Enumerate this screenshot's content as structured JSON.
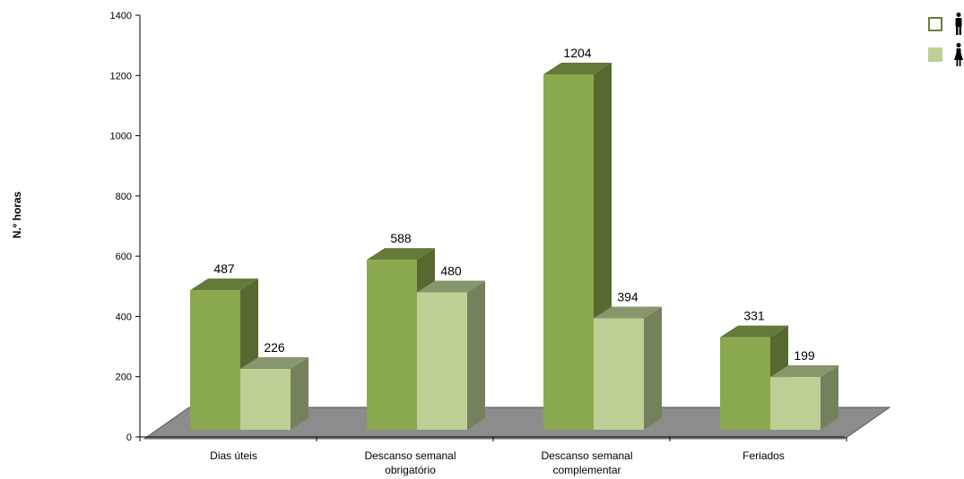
{
  "chart_data": {
    "type": "bar",
    "categories": [
      [
        "Dias úteis"
      ],
      [
        "Descanso semanal",
        "obrigatório"
      ],
      [
        "Descanso semanal",
        "complementar"
      ],
      [
        "Feriados"
      ]
    ],
    "series": [
      {
        "legend_icon": "male-figure-icon",
        "color": "#8aa94e",
        "values": [
          487,
          588,
          1204,
          331
        ]
      },
      {
        "legend_icon": "female-figure-icon",
        "color": "#bcd096",
        "values": [
          226,
          480,
          394,
          199
        ]
      }
    ],
    "ylabel": "N.º horas",
    "ylim": [
      0,
      1400
    ],
    "yticks": [
      0,
      200,
      400,
      600,
      800,
      1000,
      1200,
      1400
    ],
    "grid": false,
    "legend": "top-right",
    "three_d": true,
    "floor_color": "#8c8c8c"
  }
}
